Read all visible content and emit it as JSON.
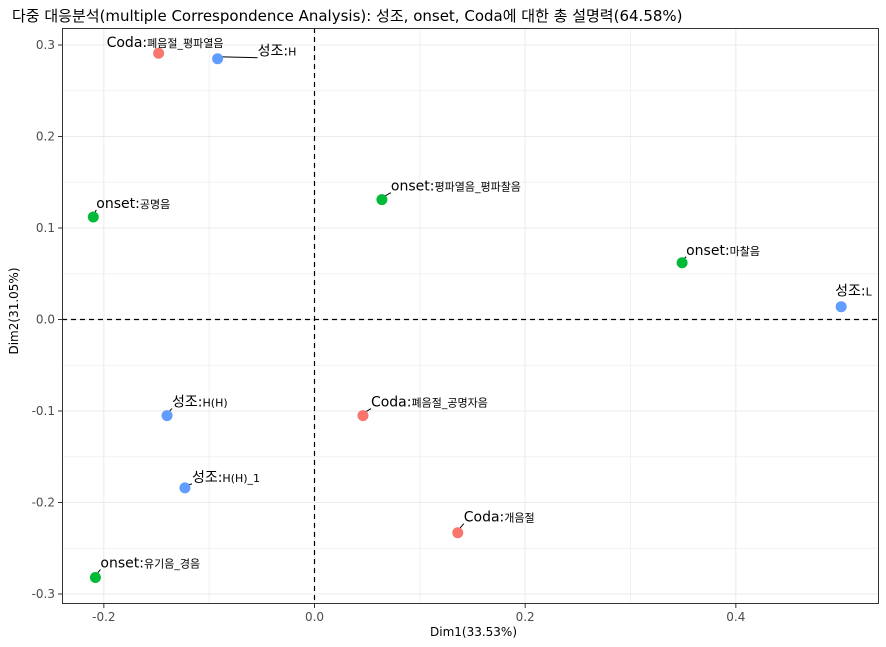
{
  "chart_data": {
    "type": "scatter",
    "title": "다중 대응분석(multiple Correspondence Analysis): 성조, onset, Coda에 대한 총 설명력(64.58%)",
    "xlabel": "Dim1(33.53%)",
    "ylabel": "Dim2(31.05%)",
    "xlim": [
      -0.25,
      0.53
    ],
    "ylim": [
      -0.31,
      0.32
    ],
    "xticks": [
      {
        "value": -0.2,
        "label": "-0.2"
      },
      {
        "value": 0.0,
        "label": "0.0"
      },
      {
        "value": 0.2,
        "label": "0.2"
      },
      {
        "value": 0.4,
        "label": "0.4"
      }
    ],
    "yticks": [
      {
        "value": 0.3,
        "label": "0.3"
      },
      {
        "value": 0.2,
        "label": "0.2"
      },
      {
        "value": 0.1,
        "label": "0.1"
      },
      {
        "value": 0.0,
        "label": "0.0"
      },
      {
        "value": -0.1,
        "label": "-0.1"
      },
      {
        "value": -0.2,
        "label": "-0.2"
      },
      {
        "value": -0.3,
        "label": "-0.3"
      }
    ],
    "grid": true,
    "reference_lines": {
      "x": 0,
      "y": 0,
      "style": "dashed"
    },
    "groups": [
      {
        "group": "Coda",
        "color": "#F8766D"
      },
      {
        "group": "onset",
        "color": "#00BA38"
      },
      {
        "group": "성조",
        "color": "#619CFF"
      }
    ],
    "points": [
      {
        "group": "Coda",
        "prefix": "Coda:",
        "category": "폐음절_평파열음",
        "x": -0.148,
        "y": 0.291
      },
      {
        "group": "성조",
        "prefix": "성조:",
        "category": "H",
        "x": -0.092,
        "y": 0.285
      },
      {
        "group": "onset",
        "prefix": "onset:",
        "category": "평파열음_평파찰음",
        "x": 0.064,
        "y": 0.131
      },
      {
        "group": "onset",
        "prefix": "onset:",
        "category": "공명음",
        "x": -0.21,
        "y": 0.112
      },
      {
        "group": "onset",
        "prefix": "onset:",
        "category": "마찰음",
        "x": 0.349,
        "y": 0.062
      },
      {
        "group": "성조",
        "prefix": "성조:",
        "category": "L",
        "x": 0.5,
        "y": 0.014
      },
      {
        "group": "성조",
        "prefix": "성조:",
        "category": "H(H)",
        "x": -0.14,
        "y": -0.105
      },
      {
        "group": "Coda",
        "prefix": "Coda:",
        "category": "폐음절_공명자음",
        "x": 0.046,
        "y": -0.105
      },
      {
        "group": "성조",
        "prefix": "성조:",
        "category": "H(H)_1",
        "x": -0.123,
        "y": -0.184
      },
      {
        "group": "Coda",
        "prefix": "Coda:",
        "category": "개음절",
        "x": 0.136,
        "y": -0.233
      },
      {
        "group": "onset",
        "prefix": "onset:",
        "category": "유기음_경음",
        "x": -0.208,
        "y": -0.282
      }
    ]
  }
}
